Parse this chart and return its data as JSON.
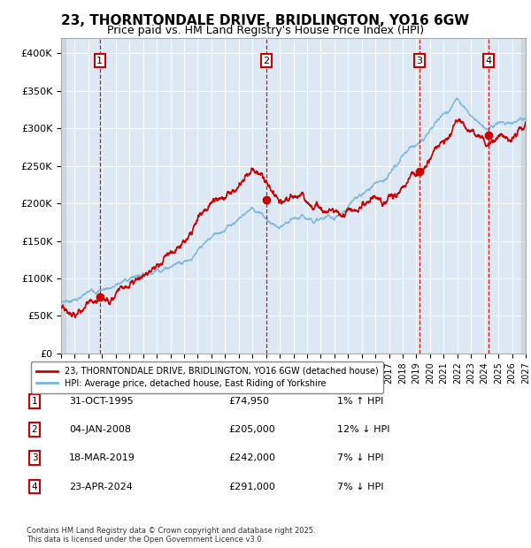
{
  "title": "23, THORNTONDALE DRIVE, BRIDLINGTON, YO16 6GW",
  "subtitle": "Price paid vs. HM Land Registry's House Price Index (HPI)",
  "title_fontsize": 11,
  "subtitle_fontsize": 9,
  "background_color": "#ffffff",
  "plot_bg_color": "#dce9f5",
  "grid_color": "#ffffff",
  "hpi_line_color": "#7ab4d8",
  "price_line_color": "#cc0000",
  "vline_color": "#cc0000",
  "marker_color": "#cc0000",
  "ylim": [
    0,
    420000
  ],
  "yticks": [
    0,
    50000,
    100000,
    150000,
    200000,
    250000,
    300000,
    350000,
    400000
  ],
  "ytick_labels": [
    "£0",
    "£50K",
    "£100K",
    "£150K",
    "£200K",
    "£250K",
    "£300K",
    "£350K",
    "£400K"
  ],
  "xlim_start": 1993,
  "xlim_end": 2027,
  "legend_entries": [
    "23, THORNTONDALE DRIVE, BRIDLINGTON, YO16 6GW (detached house)",
    "HPI: Average price, detached house, East Riding of Yorkshire"
  ],
  "legend_colors": [
    "#cc0000",
    "#7ab4d8"
  ],
  "sale_transactions": [
    {
      "num": 1,
      "date": "31-OCT-1995",
      "price": 74950,
      "price_str": "£74,950",
      "pct": "1%",
      "dir": "↑"
    },
    {
      "num": 2,
      "date": "04-JAN-2008",
      "price": 205000,
      "price_str": "£205,000",
      "pct": "12%",
      "dir": "↓"
    },
    {
      "num": 3,
      "date": "18-MAR-2019",
      "price": 242000,
      "price_str": "£242,000",
      "pct": "7%",
      "dir": "↓"
    },
    {
      "num": 4,
      "date": "23-APR-2024",
      "price": 291000,
      "price_str": "£291,000",
      "pct": "7%",
      "dir": "↓"
    }
  ],
  "sale_years": [
    1995.83,
    2008.01,
    2019.21,
    2024.31
  ],
  "sale_prices": [
    74950,
    205000,
    242000,
    291000
  ],
  "footer": "Contains HM Land Registry data © Crown copyright and database right 2025.\nThis data is licensed under the Open Government Licence v3.0."
}
